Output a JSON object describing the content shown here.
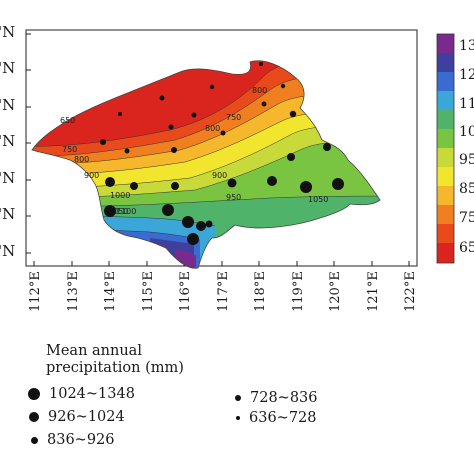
{
  "latitude_labels": [
    "'N",
    "'N",
    "'N",
    "'N",
    "'N",
    "'N",
    "'N"
  ],
  "longitude_labels": [
    "112°E",
    "113°E",
    "114°E",
    "115°E",
    "116°E",
    "117°E",
    "118°E",
    "119°E",
    "120°E",
    "121°E",
    "122°E"
  ],
  "colorbar_labels": [
    "13",
    "12",
    "11",
    "10",
    "95",
    "85",
    "75",
    "65"
  ],
  "colorbar_colors": [
    "#7a2a8c",
    "#3f3f9e",
    "#3a6bd0",
    "#3aa7d8",
    "#4fb36a",
    "#79c440",
    "#c8d93a",
    "#f2e52e",
    "#f5b72b",
    "#f07f1f",
    "#e84a1c",
    "#d9251e"
  ],
  "contour_labels": [
    "800",
    "750",
    "650",
    "800",
    "750",
    "800",
    "900",
    "900",
    "1000",
    "950",
    "1050",
    "1050",
    "1100"
  ],
  "legend": {
    "title_line1": "Mean annual",
    "title_line2": "precipitation (mm)",
    "items": [
      {
        "label": "1024~1348",
        "size": "largest"
      },
      {
        "label": "926~1024",
        "size": "large"
      },
      {
        "label": "836~926",
        "size": "medium"
      },
      {
        "label": "728~836",
        "size": "small"
      },
      {
        "label": "636~728",
        "size": "smallest"
      }
    ]
  }
}
